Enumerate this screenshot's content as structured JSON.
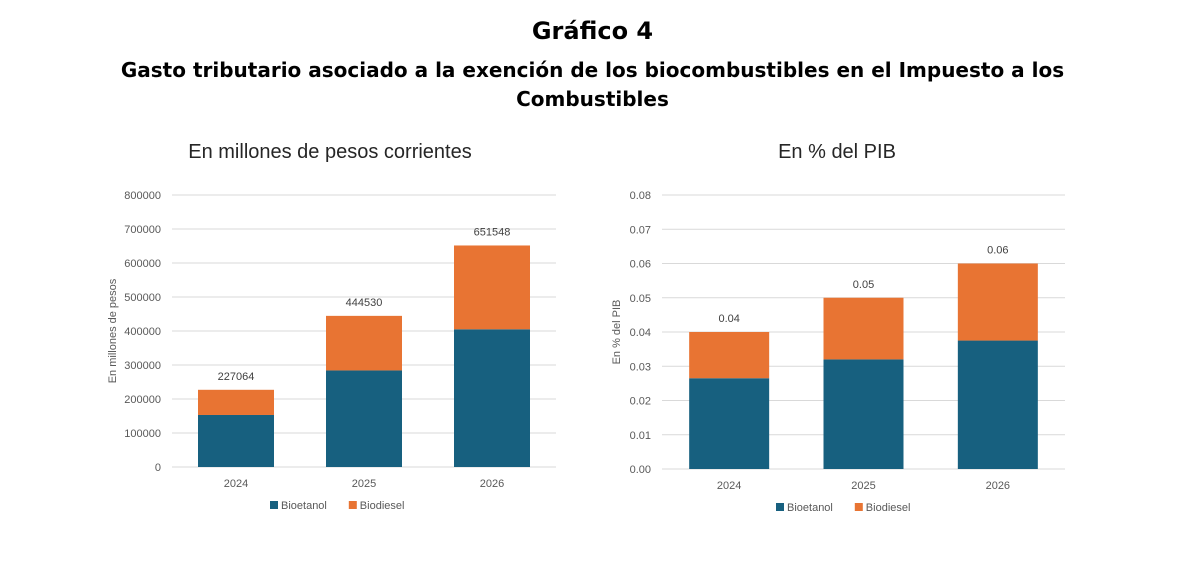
{
  "header": {
    "title": "Gráfico 4",
    "subtitle": "Gasto tributario asociado a la exención de los biocombustibles en el Impuesto a los Combustibles"
  },
  "colors": {
    "bioetanol": "#17607f",
    "biodiesel": "#e87433",
    "grid": "#d9d9d9",
    "axis_text": "#595959"
  },
  "chart_data": [
    {
      "type": "bar",
      "stacked": true,
      "title": "En millones de pesos corrientes",
      "ylabel": "En millones de pesos",
      "xlabel": "",
      "categories": [
        "2024",
        "2025",
        "2026"
      ],
      "series": [
        {
          "name": "Bioetanol",
          "values": [
            153000,
            284000,
            405000
          ]
        },
        {
          "name": "Biodiesel",
          "values": [
            74064,
            160530,
            246548
          ]
        }
      ],
      "totals": [
        "227064",
        "444530",
        "651548"
      ],
      "ylim": [
        0,
        800000
      ],
      "yticks": [
        "0",
        "100000",
        "200000",
        "300000",
        "400000",
        "500000",
        "600000",
        "700000",
        "800000"
      ],
      "grid": true,
      "legend": "bottom"
    },
    {
      "type": "bar",
      "stacked": true,
      "title": "En % del PIB",
      "ylabel": "En % del PIB",
      "xlabel": "",
      "categories": [
        "2024",
        "2025",
        "2026"
      ],
      "series": [
        {
          "name": "Bioetanol",
          "values": [
            0.0265,
            0.032,
            0.0375
          ]
        },
        {
          "name": "Biodiesel",
          "values": [
            0.0135,
            0.018,
            0.0225
          ]
        }
      ],
      "totals": [
        "0.04",
        "0.05",
        "0.06"
      ],
      "ylim": [
        0,
        0.08
      ],
      "yticks": [
        "0.00",
        "0.01",
        "0.02",
        "0.03",
        "0.04",
        "0.05",
        "0.06",
        "0.07",
        "0.08"
      ],
      "grid": true,
      "legend": "bottom"
    }
  ]
}
